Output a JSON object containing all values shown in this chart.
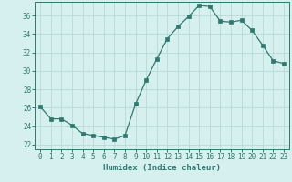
{
  "x": [
    0,
    1,
    2,
    3,
    4,
    5,
    6,
    7,
    8,
    9,
    10,
    11,
    12,
    13,
    14,
    15,
    16,
    17,
    18,
    19,
    20,
    21,
    22,
    23
  ],
  "y": [
    26.1,
    24.8,
    24.8,
    24.1,
    23.2,
    23.0,
    22.8,
    22.6,
    23.0,
    26.4,
    29.0,
    31.3,
    33.5,
    34.8,
    35.9,
    37.1,
    37.0,
    35.4,
    35.3,
    35.5,
    34.4,
    32.8,
    31.1,
    30.8
  ],
  "line_color": "#2d7a6e",
  "marker": "s",
  "marker_size": 2.2,
  "bg_color": "#d6f0f0",
  "grid_color": "#b8d8d8",
  "xlabel": "Humidex (Indice chaleur)",
  "xlim": [
    -0.5,
    23.5
  ],
  "ylim": [
    21.5,
    37.5
  ],
  "yticks": [
    22,
    24,
    26,
    28,
    30,
    32,
    34,
    36
  ],
  "xticks": [
    0,
    1,
    2,
    3,
    4,
    5,
    6,
    7,
    8,
    9,
    10,
    11,
    12,
    13,
    14,
    15,
    16,
    17,
    18,
    19,
    20,
    21,
    22,
    23
  ],
  "tick_fontsize": 5.5,
  "label_fontsize": 6.5
}
